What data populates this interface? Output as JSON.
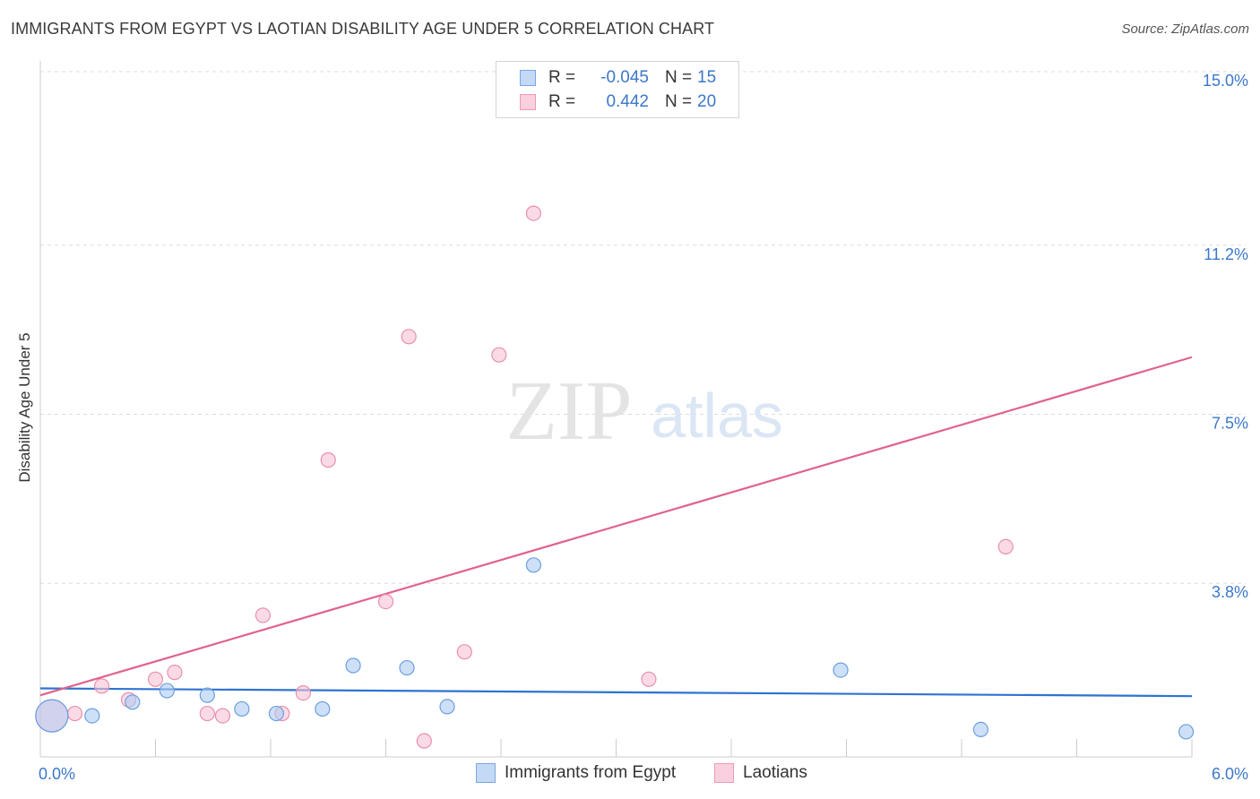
{
  "title": "IMMIGRANTS FROM EGYPT VS LAOTIAN DISABILITY AGE UNDER 5 CORRELATION CHART",
  "source": "Source: ZipAtlas.com",
  "watermark": {
    "zip": "ZIP",
    "atlas": "atlas"
  },
  "legend_top": [
    {
      "r_label": "R =",
      "r_value": "-0.045",
      "n_label": "N =",
      "n_value": "15"
    },
    {
      "r_label": "R =",
      "r_value": "0.442",
      "n_label": "N =",
      "n_value": "20"
    }
  ],
  "chart_data": {
    "type": "scatter",
    "title": "IMMIGRANTS FROM EGYPT VS LAOTIAN DISABILITY AGE UNDER 5 CORRELATION CHART",
    "xlabel": "",
    "ylabel": "Disability Age Under 5",
    "xlim": [
      0,
      6.0
    ],
    "ylim": [
      0,
      15.0
    ],
    "x_tick_labels": [
      "0.0%",
      "6.0%"
    ],
    "y_tick_values": [
      3.8,
      7.5,
      11.2,
      15.0
    ],
    "y_tick_labels": [
      "3.8%",
      "7.5%",
      "11.2%",
      "15.0%"
    ],
    "grid": true,
    "legend_position": "bottom",
    "series": [
      {
        "name": "Immigrants from Egypt",
        "color": "#6a9fe0",
        "fill": "#aecbf2",
        "trend_color": "#2e73d1",
        "r": -0.045,
        "n": 15,
        "points": [
          {
            "x": 0.06,
            "y": 0.9,
            "size": "large"
          },
          {
            "x": 0.27,
            "y": 0.9
          },
          {
            "x": 0.48,
            "y": 1.2
          },
          {
            "x": 0.66,
            "y": 1.45
          },
          {
            "x": 0.87,
            "y": 1.35
          },
          {
            "x": 1.05,
            "y": 1.05
          },
          {
            "x": 1.23,
            "y": 0.95
          },
          {
            "x": 1.47,
            "y": 1.05
          },
          {
            "x": 1.63,
            "y": 2.0
          },
          {
            "x": 1.91,
            "y": 1.95
          },
          {
            "x": 2.12,
            "y": 1.1
          },
          {
            "x": 2.57,
            "y": 4.2
          },
          {
            "x": 4.17,
            "y": 1.9
          },
          {
            "x": 4.9,
            "y": 0.6
          },
          {
            "x": 5.97,
            "y": 0.55
          }
        ],
        "trend": {
          "x0": 0.0,
          "y0": 1.5,
          "x1": 6.0,
          "y1": 1.33
        }
      },
      {
        "name": "Laotians",
        "color": "#e890ac",
        "fill": "#f7c3d3",
        "trend_color": "#e0638a",
        "r": 0.442,
        "n": 20,
        "points": [
          {
            "x": 0.06,
            "y": 0.9,
            "size": "large"
          },
          {
            "x": 0.18,
            "y": 0.95
          },
          {
            "x": 0.32,
            "y": 1.55
          },
          {
            "x": 0.46,
            "y": 1.25
          },
          {
            "x": 0.6,
            "y": 1.7
          },
          {
            "x": 0.7,
            "y": 1.85
          },
          {
            "x": 0.87,
            "y": 0.95
          },
          {
            "x": 0.95,
            "y": 0.9
          },
          {
            "x": 1.16,
            "y": 3.1
          },
          {
            "x": 1.26,
            "y": 0.95
          },
          {
            "x": 1.37,
            "y": 1.4
          },
          {
            "x": 1.5,
            "y": 6.5
          },
          {
            "x": 1.8,
            "y": 3.4
          },
          {
            "x": 1.92,
            "y": 9.2
          },
          {
            "x": 2.0,
            "y": 0.35
          },
          {
            "x": 2.21,
            "y": 2.3
          },
          {
            "x": 2.39,
            "y": 8.8
          },
          {
            "x": 2.57,
            "y": 11.9
          },
          {
            "x": 3.17,
            "y": 1.7
          },
          {
            "x": 5.03,
            "y": 4.6
          }
        ],
        "trend": {
          "x0": 0.0,
          "y0": 1.35,
          "x1": 6.0,
          "y1": 8.75
        }
      }
    ]
  }
}
